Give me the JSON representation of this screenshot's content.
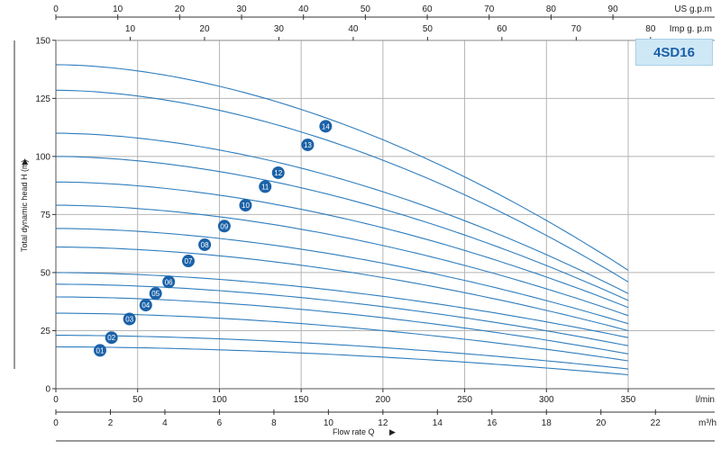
{
  "model": "4SD16",
  "axes": {
    "us_gpm": {
      "unit": "US g.p.m",
      "ticks": [
        "0",
        "10",
        "20",
        "30",
        "40",
        "50",
        "60",
        "70",
        "80",
        "90"
      ],
      "values": [
        0,
        10,
        20,
        30,
        40,
        50,
        60,
        70,
        80,
        90
      ]
    },
    "imp_gpm": {
      "unit": "Imp g. p.m",
      "ticks": [
        "10",
        "20",
        "30",
        "40",
        "50",
        "60",
        "70",
        "80"
      ],
      "values": [
        10,
        20,
        30,
        40,
        50,
        60,
        70,
        80
      ]
    },
    "lmin": {
      "unit": "l/min",
      "ticks": [
        "0",
        "50",
        "100",
        "150",
        "200",
        "250",
        "300",
        "350"
      ],
      "values": [
        0,
        50,
        100,
        150,
        200,
        250,
        300,
        350
      ]
    },
    "m3h": {
      "unit": "m³/h",
      "ticks": [
        "0",
        "2",
        "4",
        "6",
        "8",
        "10",
        "12",
        "14",
        "16",
        "18",
        "20",
        "22"
      ],
      "values": [
        0,
        2,
        4,
        6,
        8,
        10,
        12,
        14,
        16,
        18,
        20,
        22
      ]
    },
    "y": {
      "ticks": [
        "0",
        "25",
        "50",
        "75",
        "100",
        "125",
        "150"
      ],
      "values": [
        0,
        25,
        50,
        75,
        100,
        125,
        150
      ]
    }
  },
  "chart_data": {
    "type": "line",
    "title": "4SD16",
    "xlabel": "Flow rate Q",
    "x_unit": "l/min",
    "ylabel": "Total dynamic head H (m)",
    "xlim": [
      0,
      400
    ],
    "ylim": [
      0,
      150
    ],
    "grid": true,
    "x": [
      0,
      350
    ],
    "series": [
      {
        "name": "01",
        "values": [
          18,
          6
        ]
      },
      {
        "name": "02",
        "values": [
          23,
          8.5
        ]
      },
      {
        "name": "03",
        "values": [
          32.5,
          12
        ]
      },
      {
        "name": "04",
        "values": [
          39.5,
          15
        ]
      },
      {
        "name": "05",
        "values": [
          45,
          18.5
        ]
      },
      {
        "name": "06",
        "values": [
          50,
          22
        ]
      },
      {
        "name": "07",
        "values": [
          61,
          25
        ]
      },
      {
        "name": "08",
        "values": [
          69,
          28
        ]
      },
      {
        "name": "09",
        "values": [
          79,
          31.5
        ]
      },
      {
        "name": "10",
        "values": [
          89,
          35
        ]
      },
      {
        "name": "11",
        "values": [
          100,
          38
        ]
      },
      {
        "name": "12",
        "values": [
          110,
          41
        ]
      },
      {
        "name": "13",
        "values": [
          128.5,
          46
        ]
      },
      {
        "name": "14",
        "values": [
          139.5,
          51
        ]
      }
    ],
    "label_points": [
      {
        "name": "01",
        "x": 27,
        "y": 16.5
      },
      {
        "name": "02",
        "x": 34,
        "y": 22
      },
      {
        "name": "03",
        "x": 45,
        "y": 30
      },
      {
        "name": "04",
        "x": 55,
        "y": 36
      },
      {
        "name": "05",
        "x": 61,
        "y": 41
      },
      {
        "name": "06",
        "x": 69,
        "y": 46
      },
      {
        "name": "07",
        "x": 81,
        "y": 55
      },
      {
        "name": "08",
        "x": 91,
        "y": 62
      },
      {
        "name": "09",
        "x": 103,
        "y": 70
      },
      {
        "name": "10",
        "x": 116,
        "y": 79
      },
      {
        "name": "11",
        "x": 128,
        "y": 87
      },
      {
        "name": "12",
        "x": 136,
        "y": 93
      },
      {
        "name": "13",
        "x": 154,
        "y": 105
      },
      {
        "name": "14",
        "x": 165,
        "y": 113
      }
    ],
    "colors": {
      "curve": "#2f7dbd",
      "marker": "#1b62a8",
      "marker_text": "#ffffff",
      "grid": "#b5b5b5",
      "axis": "#333333"
    }
  }
}
